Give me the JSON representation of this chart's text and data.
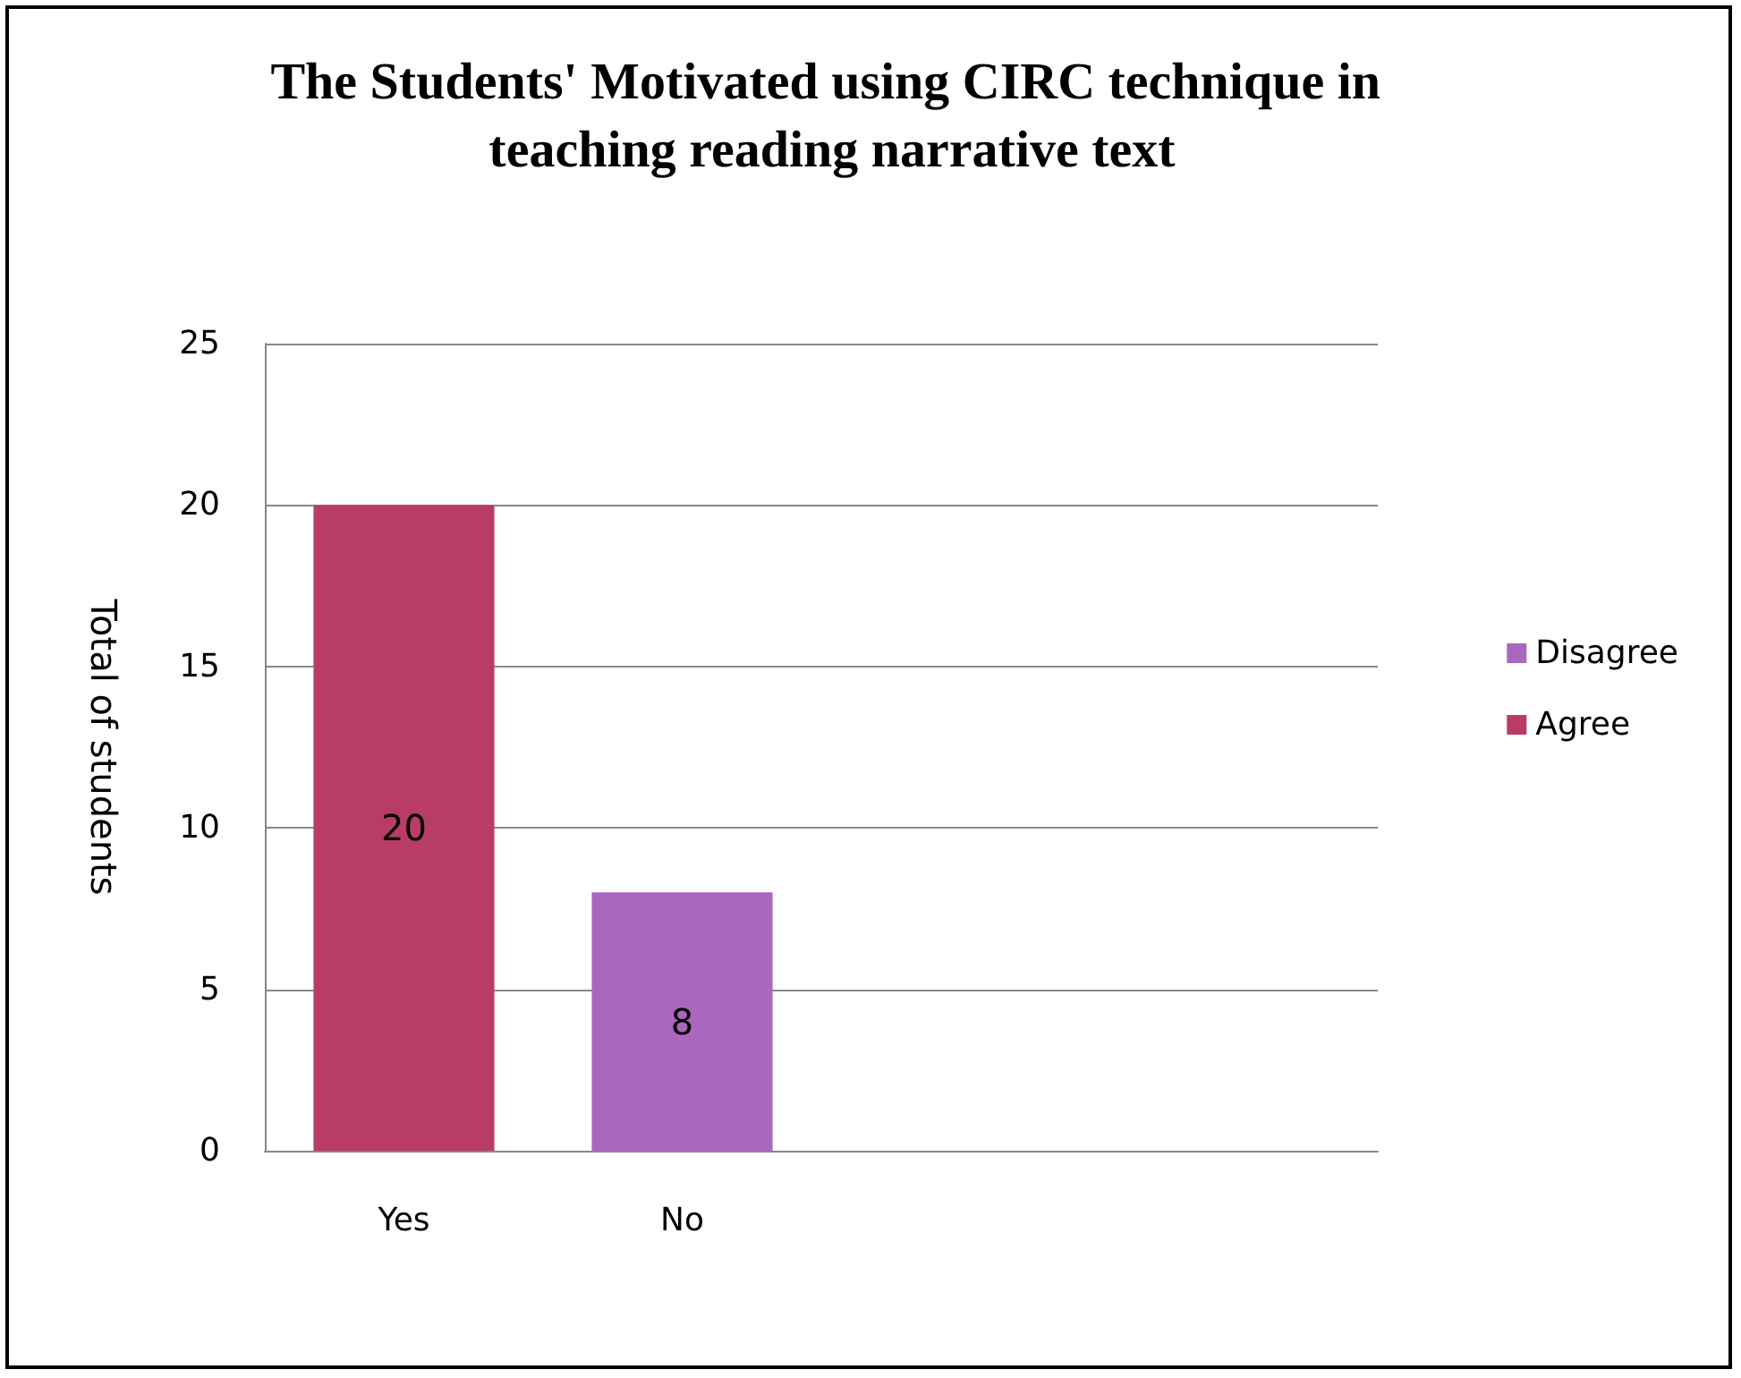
{
  "chart_data": {
    "type": "bar",
    "title": "The Students' Motivated using CIRC technique in teaching reading narrative text",
    "ylabel": "Total of students",
    "categories": [
      "Yes",
      "No",
      null,
      null
    ],
    "series": [
      {
        "name": "Agree",
        "color": "#b83c66",
        "values": [
          20,
          null,
          null,
          null
        ]
      },
      {
        "name": "Disagree",
        "color": "#ab67bd",
        "values": [
          null,
          8,
          null,
          null
        ]
      }
    ],
    "stacked": true,
    "ylim": [
      0,
      25
    ],
    "yticks": [
      0,
      5,
      10,
      15,
      20,
      25
    ],
    "grid": "y",
    "legend": "right",
    "data_labels": true
  }
}
